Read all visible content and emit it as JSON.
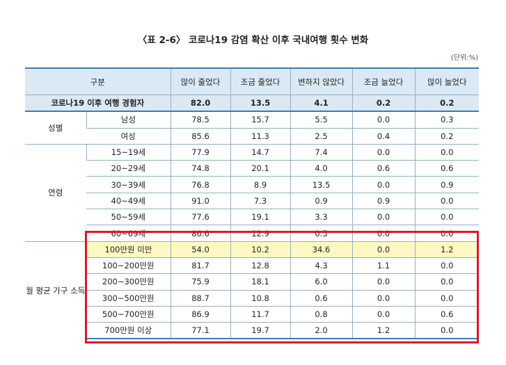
{
  "title": "〈표 2-6〉 코로나19 감염 확산 이후 국내여행 횟수 변화",
  "unit": "(단위:%)",
  "header": [
    "구분",
    "많이 줄었다",
    "조금 줄었다",
    "변하지 않았다",
    "조금 늘었다",
    "많이 늘었다"
  ],
  "total": {
    "label": "코로나19 이후 여행 경험자",
    "values": [
      "82.0",
      "13.5",
      "4.1",
      "0.2",
      "0.2"
    ]
  },
  "groups": {
    "gender": {
      "label": "성별",
      "rows": [
        {
          "label": "남성",
          "values": [
            "78.5",
            "15.7",
            "5.5",
            "0.0",
            "0.3"
          ]
        },
        {
          "label": "여성",
          "values": [
            "85.6",
            "11.3",
            "2.5",
            "0.4",
            "0.2"
          ]
        }
      ]
    },
    "age": {
      "label": "연령",
      "rows": [
        {
          "label": "15~19세",
          "values": [
            "77.9",
            "14.7",
            "7.4",
            "0.0",
            "0.0"
          ]
        },
        {
          "label": "20~29세",
          "values": [
            "74.8",
            "20.1",
            "4.0",
            "0.6",
            "0.6"
          ]
        },
        {
          "label": "30~39세",
          "values": [
            "76.8",
            "8.9",
            "13.5",
            "0.0",
            "0.9"
          ]
        },
        {
          "label": "40~49세",
          "values": [
            "91.0",
            "7.3",
            "0.9",
            "0.9",
            "0.0"
          ]
        },
        {
          "label": "50~59세",
          "values": [
            "77.6",
            "19.1",
            "3.3",
            "0.0",
            "0.0"
          ]
        },
        {
          "label": "60~69세",
          "values": [
            "86.6",
            "12.9",
            "0.5",
            "0.0",
            "0.0"
          ]
        }
      ]
    },
    "income": {
      "label": "월 평균 가구 소득",
      "rows": [
        {
          "label": "100만원 미만",
          "values": [
            "54.0",
            "10.2",
            "34.6",
            "0.0",
            "1.2"
          ]
        },
        {
          "label": "100~200만원",
          "values": [
            "81.7",
            "12.8",
            "4.3",
            "1.1",
            "0.0"
          ]
        },
        {
          "label": "200~300만원",
          "values": [
            "75.9",
            "18.1",
            "6.0",
            "0.0",
            "0.0"
          ]
        },
        {
          "label": "300~500만원",
          "values": [
            "88.7",
            "10.8",
            "0.6",
            "0.0",
            "0.0"
          ]
        },
        {
          "label": "500~700만원",
          "values": [
            "86.9",
            "11.7",
            "0.8",
            "0.0",
            "0.6"
          ]
        },
        {
          "label": "700만원 이상",
          "values": [
            "77.1",
            "19.7",
            "2.0",
            "1.2",
            "0.0"
          ]
        }
      ]
    }
  },
  "highlight_color": "#fff8c4",
  "box_color": "#e0142b"
}
